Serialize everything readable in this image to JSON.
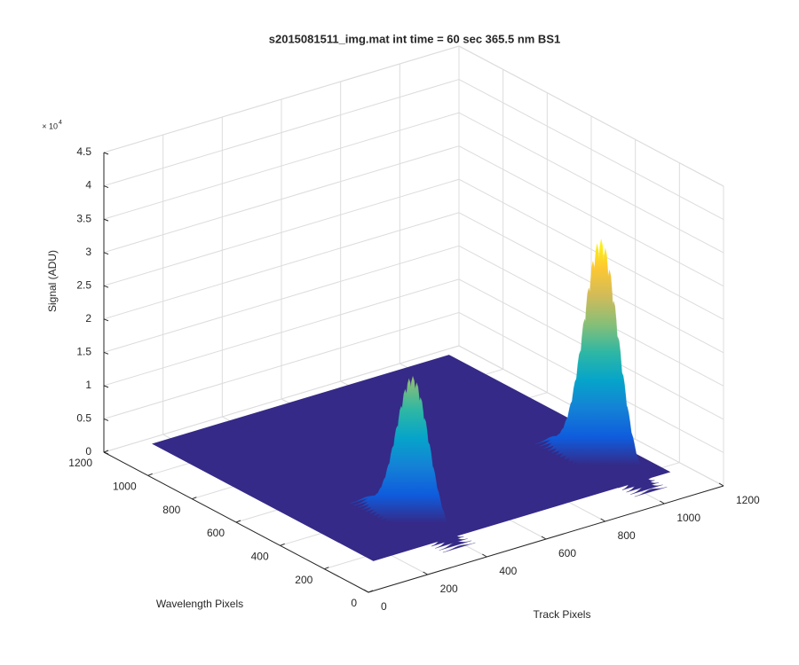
{
  "chart_data": {
    "type": "surface3d",
    "title": "s2015081511_img.mat int time = 60 sec  365.5 nm BS1",
    "xlabel": "Track Pixels",
    "ylabel": "Wavelength Pixels",
    "zlabel": "Signal (ADU)",
    "z_exponent": {
      "base": "× 10",
      "power": "4"
    },
    "xlim": [
      0,
      1200
    ],
    "xticks": [
      0,
      200,
      400,
      600,
      800,
      1000,
      1200
    ],
    "ylim": [
      0,
      1200
    ],
    "yticks": [
      0,
      200,
      400,
      600,
      800,
      1000,
      1200
    ],
    "zlim": [
      0,
      45000
    ],
    "zticks": [
      {
        "value": 0,
        "label": "0"
      },
      {
        "value": 5000,
        "label": "0.5"
      },
      {
        "value": 10000,
        "label": "1"
      },
      {
        "value": 15000,
        "label": "1.5"
      },
      {
        "value": 20000,
        "label": "2"
      },
      {
        "value": 25000,
        "label": "2.5"
      },
      {
        "value": 30000,
        "label": "3"
      },
      {
        "value": 35000,
        "label": "3.5"
      },
      {
        "value": 40000,
        "label": "4"
      },
      {
        "value": 45000,
        "label": "4.5"
      }
    ],
    "grid": true,
    "surface": {
      "x_range": [
        140,
        1140
      ],
      "y_range": [
        165,
        1165
      ],
      "level": 0,
      "color": "#352a87"
    },
    "peaks": [
      {
        "x": 378,
        "y": 306,
        "height": 22000,
        "x_width": 18,
        "y_width": 70
      },
      {
        "x": 1019,
        "y": 312,
        "height": 34000,
        "x_width": 18,
        "y_width": 75
      }
    ],
    "colormap": [
      "#352a87",
      "#0f5cdd",
      "#1481d6",
      "#06a4ca",
      "#2eb7a4",
      "#87bf77",
      "#d1bb59",
      "#fec832",
      "#f9fb0e"
    ]
  }
}
